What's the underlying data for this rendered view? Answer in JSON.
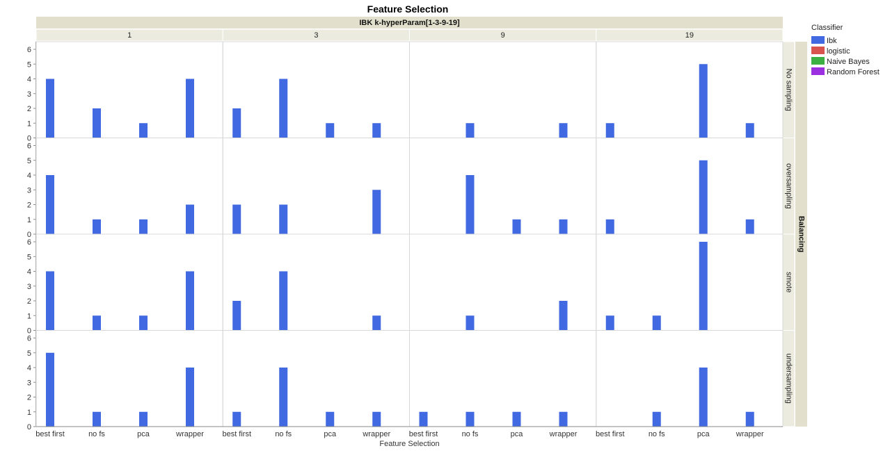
{
  "colors": {
    "Ibk": "#4169e1",
    "logistic": "#d9534f",
    "Naive Bayes": "#3cb043",
    "Random Forest": "#9b30e0",
    "header_bg": "#e2e0cc",
    "header_bg2": "#ecebdf",
    "grid": "#d8d8d8"
  },
  "chart_data": {
    "type": "bar",
    "title": "Feature Selection",
    "column_group_title": "IBK k-hyperParam[1-3-9-19]",
    "column_groups": [
      "1",
      "3",
      "9",
      "19"
    ],
    "row_group_title": "Balancing",
    "row_groups": [
      "No sampling",
      "oversampling",
      "smote",
      "undersampling"
    ],
    "categories": [
      "best first",
      "no fs",
      "pca",
      "wrapper"
    ],
    "xlabel": "Feature Selection",
    "ylabel": "",
    "ylim": [
      0,
      6
    ],
    "yticks": [
      0,
      1,
      2,
      3,
      4,
      5,
      6
    ],
    "legend": {
      "title": "Classifier",
      "position": "top-right",
      "items": [
        "Ibk",
        "logistic",
        "Naive Bayes",
        "Random Forest"
      ]
    },
    "series_name": "Ibk",
    "values": {
      "No sampling": {
        "1": [
          4,
          2,
          1,
          4
        ],
        "3": [
          2,
          4,
          1,
          1
        ],
        "9": [
          0,
          1,
          0,
          1
        ],
        "19": [
          1,
          0,
          5,
          1
        ]
      },
      "oversampling": {
        "1": [
          4,
          1,
          1,
          2
        ],
        "3": [
          2,
          2,
          0,
          3
        ],
        "9": [
          0,
          4,
          1,
          1
        ],
        "19": [
          1,
          0,
          5,
          1
        ]
      },
      "smote": {
        "1": [
          4,
          1,
          1,
          4
        ],
        "3": [
          2,
          4,
          0,
          1
        ],
        "9": [
          0,
          1,
          0,
          2
        ],
        "19": [
          1,
          1,
          6,
          0
        ]
      },
      "undersampling": {
        "1": [
          5,
          1,
          1,
          4
        ],
        "3": [
          1,
          4,
          1,
          1
        ],
        "9": [
          1,
          1,
          1,
          1
        ],
        "19": [
          0,
          1,
          4,
          1
        ]
      }
    },
    "grid": false
  }
}
